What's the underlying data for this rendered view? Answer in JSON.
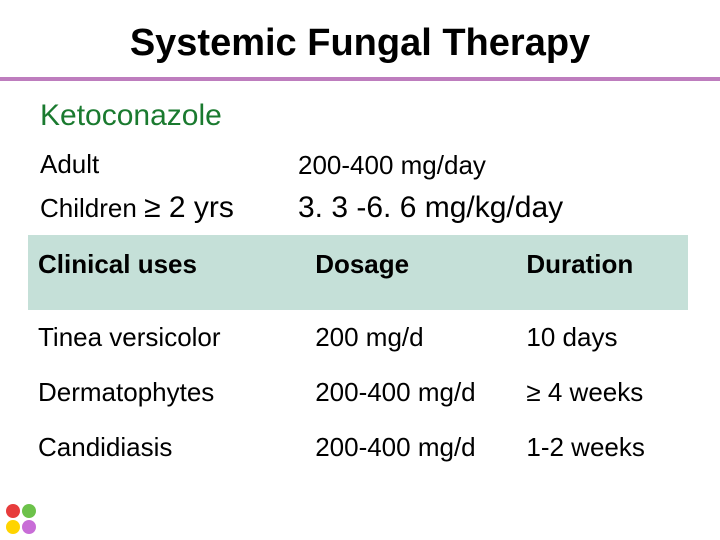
{
  "title": "Systemic Fungal Therapy",
  "title_rule_color": "#be7dbe",
  "drug": "Ketoconazole",
  "drug_color": "#1a7a2f",
  "dosing": [
    {
      "label_prefix": "Adult",
      "label_big": "",
      "value": "200-400 mg/day",
      "value_big": false
    },
    {
      "label_prefix": "Children ",
      "label_big": "≥ 2 yrs",
      "value": "3. 3 -6. 6 mg/kg/day",
      "value_big": true
    }
  ],
  "table": {
    "header_bg": "#c5e0d8",
    "columns": [
      "Clinical uses",
      "Dosage",
      "Duration"
    ],
    "rows": [
      [
        "Tinea versicolor",
        "200 mg/d",
        "10 days"
      ],
      [
        "Dermatophytes",
        "200-400 mg/d",
        "≥ 4 weeks"
      ],
      [
        "Candidiasis",
        "200-400 mg/d",
        "1-2 weeks"
      ]
    ]
  },
  "corner_dots": [
    "#e73c3c",
    "#6cc24a",
    "#ffd400",
    "#c86dd7"
  ]
}
